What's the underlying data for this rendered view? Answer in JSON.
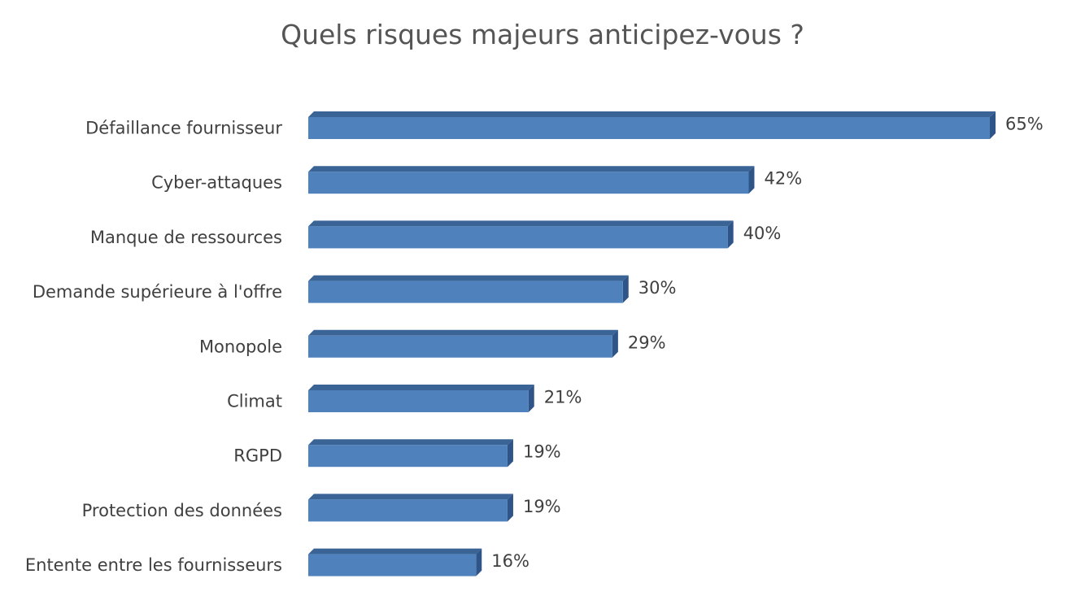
{
  "chart_data": {
    "type": "bar",
    "orientation": "horizontal",
    "style": "3d",
    "title": "Quels risques majeurs anticipez-vous ?",
    "xlabel": "",
    "ylabel": "",
    "categories": [
      "Défaillance fournisseur",
      "Cyber-attaques",
      "Manque de ressources",
      "Demande supérieure à l'offre",
      "Monopole",
      "Climat",
      "RGPD",
      "Protection des données",
      "Entente entre les fournisseurs"
    ],
    "values": [
      65,
      42,
      40,
      30,
      29,
      21,
      19,
      19,
      16
    ],
    "data_labels": [
      "65%",
      "42%",
      "40%",
      "30%",
      "29%",
      "21%",
      "19%",
      "19%",
      "16%"
    ],
    "unit": "%",
    "xlim": [
      0,
      65
    ],
    "grid": false,
    "legend": "none",
    "colors": {
      "bar_front": "#4f81bd",
      "bar_top": "#3a6496",
      "bar_side": "#2f5487",
      "text": "#404040",
      "title": "#555555"
    }
  }
}
